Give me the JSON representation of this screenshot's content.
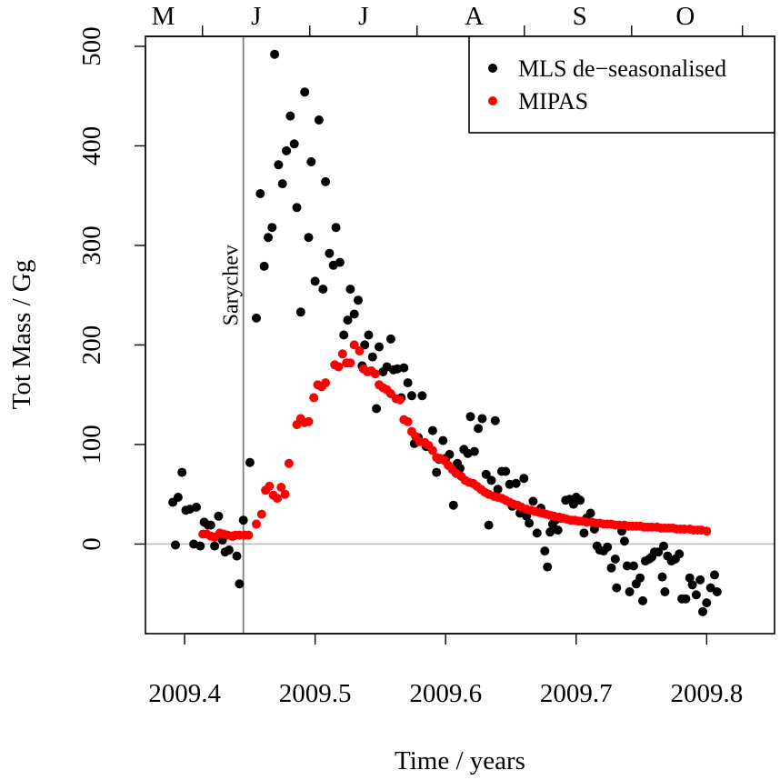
{
  "chart_data": {
    "type": "scatter",
    "xlabel": "Time / years",
    "ylabel": "Tot Mass / Gg",
    "xlim": [
      2009.37,
      2009.852
    ],
    "ylim": [
      -90,
      510
    ],
    "x_ticks": [
      2009.4,
      2009.5,
      2009.6,
      2009.7,
      2009.8
    ],
    "x_tick_labels": [
      "2009.4",
      "2009.5",
      "2009.6",
      "2009.7",
      "2009.8"
    ],
    "y_ticks": [
      0,
      100,
      200,
      300,
      400,
      500
    ],
    "y_tick_labels": [
      "0",
      "100",
      "200",
      "300",
      "400",
      "500"
    ],
    "month_boundaries": [
      2009.4137,
      2009.4959,
      2009.5781,
      2009.6603,
      2009.7425,
      2009.8274
    ],
    "month_labels": [
      {
        "label": "M",
        "x": 2009.3836
      },
      {
        "label": "J",
        "x": 2009.4548
      },
      {
        "label": "J",
        "x": 2009.537
      },
      {
        "label": "A",
        "x": 2009.6219
      },
      {
        "label": "S",
        "x": 2009.7027
      },
      {
        "label": "O",
        "x": 2009.7836
      }
    ],
    "event": {
      "label": "Sarychev",
      "x": 2009.445,
      "color": "#808080"
    },
    "zero_line": {
      "y": 0,
      "color": "#bebebe"
    },
    "legend_position": "top-right",
    "grid": false,
    "series": [
      {
        "name": "MLS de−seasonalised",
        "color": "#000000",
        "points": [
          [
            2009.391,
            42
          ],
          [
            2009.393,
            -1
          ],
          [
            2009.395,
            47
          ],
          [
            2009.398,
            72
          ],
          [
            2009.401,
            34
          ],
          [
            2009.404,
            35
          ],
          [
            2009.407,
            0
          ],
          [
            2009.409,
            37
          ],
          [
            2009.412,
            -2
          ],
          [
            2009.415,
            22
          ],
          [
            2009.418,
            19
          ],
          [
            2009.42,
            19
          ],
          [
            2009.423,
            -2
          ],
          [
            2009.426,
            28
          ],
          [
            2009.429,
            4
          ],
          [
            2009.431,
            -8
          ],
          [
            2009.434,
            -6
          ],
          [
            2009.437,
            8
          ],
          [
            2009.44,
            -12
          ],
          [
            2009.442,
            -40
          ],
          [
            2009.445,
            24
          ],
          [
            2009.45,
            82
          ],
          [
            2009.455,
            227
          ],
          [
            2009.458,
            352
          ],
          [
            2009.461,
            279
          ],
          [
            2009.464,
            308
          ],
          [
            2009.467,
            318
          ],
          [
            2009.469,
            492
          ],
          [
            2009.472,
            381
          ],
          [
            2009.475,
            362
          ],
          [
            2009.478,
            395
          ],
          [
            2009.481,
            430
          ],
          [
            2009.484,
            402
          ],
          [
            2009.486,
            338
          ],
          [
            2009.489,
            233
          ],
          [
            2009.492,
            454
          ],
          [
            2009.495,
            308
          ],
          [
            2009.497,
            384
          ],
          [
            2009.5,
            264
          ],
          [
            2009.503,
            426
          ],
          [
            2009.506,
            256
          ],
          [
            2009.508,
            364
          ],
          [
            2009.511,
            292
          ],
          [
            2009.514,
            280
          ],
          [
            2009.516,
            318
          ],
          [
            2009.519,
            283
          ],
          [
            2009.522,
            210
          ],
          [
            2009.525,
            225
          ],
          [
            2009.527,
            256
          ],
          [
            2009.53,
            231
          ],
          [
            2009.533,
            245
          ],
          [
            2009.536,
            179
          ],
          [
            2009.538,
            200
          ],
          [
            2009.541,
            210
          ],
          [
            2009.544,
            188
          ],
          [
            2009.547,
            136
          ],
          [
            2009.549,
            198
          ],
          [
            2009.552,
            173
          ],
          [
            2009.555,
            178
          ],
          [
            2009.558,
            206
          ],
          [
            2009.56,
            175
          ],
          [
            2009.563,
            176
          ],
          [
            2009.566,
            147
          ],
          [
            2009.568,
            177
          ],
          [
            2009.571,
            162
          ],
          [
            2009.574,
            149
          ],
          [
            2009.576,
            101
          ],
          [
            2009.579,
            107
          ],
          [
            2009.582,
            149
          ],
          [
            2009.585,
            98
          ],
          [
            2009.587,
            98
          ],
          [
            2009.59,
            114
          ],
          [
            2009.593,
            72
          ],
          [
            2009.595,
            85
          ],
          [
            2009.598,
            104
          ],
          [
            2009.6,
            86
          ],
          [
            2009.603,
            90
          ],
          [
            2009.606,
            39
          ],
          [
            2009.609,
            81
          ],
          [
            2009.611,
            76
          ],
          [
            2009.614,
            95
          ],
          [
            2009.617,
            91
          ],
          [
            2009.619,
            128
          ],
          [
            2009.622,
            93
          ],
          [
            2009.625,
            116
          ],
          [
            2009.628,
            126
          ],
          [
            2009.631,
            70
          ],
          [
            2009.633,
            19
          ],
          [
            2009.635,
            64
          ],
          [
            2009.638,
            124
          ],
          [
            2009.64,
            55
          ],
          [
            2009.643,
            73
          ],
          [
            2009.646,
            73
          ],
          [
            2009.649,
            60
          ],
          [
            2009.651,
            38
          ],
          [
            2009.654,
            61
          ],
          [
            2009.657,
            31
          ],
          [
            2009.66,
            66
          ],
          [
            2009.662,
            28
          ],
          [
            2009.664,
            21
          ],
          [
            2009.667,
            43
          ],
          [
            2009.67,
            11
          ],
          [
            2009.673,
            36
          ],
          [
            2009.676,
            -7
          ],
          [
            2009.678,
            -23
          ],
          [
            2009.68,
            12
          ],
          [
            2009.682,
            20
          ],
          [
            2009.684,
            24
          ],
          [
            2009.686,
            14
          ],
          [
            2009.688,
            26
          ],
          [
            2009.692,
            44
          ],
          [
            2009.695,
            45
          ],
          [
            2009.698,
            40
          ],
          [
            2009.7,
            47
          ],
          [
            2009.703,
            44
          ],
          [
            2009.706,
            11
          ],
          [
            2009.708,
            26
          ],
          [
            2009.711,
            31
          ],
          [
            2009.714,
            15
          ],
          [
            2009.716,
            -2
          ],
          [
            2009.718,
            -6
          ],
          [
            2009.721,
            -7
          ],
          [
            2009.724,
            -3
          ],
          [
            2009.727,
            -24
          ],
          [
            2009.73,
            -15
          ],
          [
            2009.731,
            -44
          ],
          [
            2009.735,
            13
          ],
          [
            2009.737,
            3
          ],
          [
            2009.739,
            -22
          ],
          [
            2009.741,
            -48
          ],
          [
            2009.744,
            -22
          ],
          [
            2009.746,
            -40
          ],
          [
            2009.749,
            -34
          ],
          [
            2009.751,
            -57
          ],
          [
            2009.753,
            -17
          ],
          [
            2009.756,
            -15
          ],
          [
            2009.758,
            -13
          ],
          [
            2009.76,
            -8
          ],
          [
            2009.763,
            -8
          ],
          [
            2009.766,
            -33
          ],
          [
            2009.767,
            -2
          ],
          [
            2009.768,
            -48
          ],
          [
            2009.77,
            -12
          ],
          [
            2009.773,
            -17
          ],
          [
            2009.776,
            -15
          ],
          [
            2009.779,
            -10
          ],
          [
            2009.781,
            -55
          ],
          [
            2009.784,
            -55
          ],
          [
            2009.787,
            -34
          ],
          [
            2009.789,
            -41
          ],
          [
            2009.792,
            -51
          ],
          [
            2009.795,
            -36
          ],
          [
            2009.797,
            -68
          ],
          [
            2009.8,
            -59
          ],
          [
            2009.803,
            -44
          ],
          [
            2009.806,
            -31
          ],
          [
            2009.808,
            -48
          ]
        ]
      },
      {
        "name": "MIPAS",
        "color": "#ff0000",
        "points": [
          [
            2009.414,
            10
          ],
          [
            2009.417,
            10
          ],
          [
            2009.42,
            8
          ],
          [
            2009.423,
            7
          ],
          [
            2009.427,
            11
          ],
          [
            2009.43,
            10
          ],
          [
            2009.433,
            9
          ],
          [
            2009.436,
            8
          ],
          [
            2009.439,
            9
          ],
          [
            2009.442,
            9
          ],
          [
            2009.446,
            9
          ],
          [
            2009.449,
            9
          ],
          [
            2009.455,
            20
          ],
          [
            2009.459,
            30
          ],
          [
            2009.462,
            54
          ],
          [
            2009.465,
            58
          ],
          [
            2009.468,
            49
          ],
          [
            2009.471,
            46
          ],
          [
            2009.474,
            57
          ],
          [
            2009.477,
            50
          ],
          [
            2009.48,
            81
          ],
          [
            2009.486,
            120
          ],
          [
            2009.489,
            126
          ],
          [
            2009.492,
            122
          ],
          [
            2009.495,
            123
          ],
          [
            2009.499,
            147
          ],
          [
            2009.502,
            160
          ],
          [
            2009.505,
            158
          ],
          [
            2009.508,
            162
          ],
          [
            2009.515,
            180
          ],
          [
            2009.518,
            178
          ],
          [
            2009.521,
            191
          ],
          [
            2009.524,
            182
          ],
          [
            2009.527,
            182
          ],
          [
            2009.53,
            200
          ],
          [
            2009.534,
            194
          ],
          [
            2009.537,
            176
          ],
          [
            2009.54,
            173
          ],
          [
            2009.543,
            174
          ],
          [
            2009.546,
            171
          ],
          [
            2009.549,
            160
          ],
          [
            2009.552,
            157
          ],
          [
            2009.555,
            155
          ],
          [
            2009.558,
            151
          ],
          [
            2009.562,
            146
          ],
          [
            2009.565,
            145
          ],
          [
            2009.568,
            125
          ],
          [
            2009.571,
            123
          ],
          [
            2009.574,
            113
          ],
          [
            2009.577,
            108
          ],
          [
            2009.58,
            103
          ],
          [
            2009.584,
            102
          ],
          [
            2009.587,
            99
          ],
          [
            2009.59,
            94
          ],
          [
            2009.593,
            87
          ],
          [
            2009.596,
            86
          ],
          [
            2009.599,
            84
          ],
          [
            2009.602,
            79
          ],
          [
            2009.605,
            75
          ],
          [
            2009.608,
            71
          ],
          [
            2009.612,
            68
          ],
          [
            2009.615,
            64
          ],
          [
            2009.618,
            62
          ],
          [
            2009.621,
            61
          ],
          [
            2009.624,
            58
          ],
          [
            2009.627,
            55
          ],
          [
            2009.63,
            52
          ],
          [
            2009.633,
            50
          ],
          [
            2009.637,
            48
          ],
          [
            2009.64,
            47
          ],
          [
            2009.643,
            46
          ],
          [
            2009.646,
            44
          ],
          [
            2009.649,
            42
          ],
          [
            2009.652,
            40
          ],
          [
            2009.655,
            39
          ],
          [
            2009.658,
            37
          ],
          [
            2009.662,
            35
          ],
          [
            2009.665,
            34
          ],
          [
            2009.668,
            33
          ],
          [
            2009.671,
            32
          ],
          [
            2009.674,
            31
          ],
          [
            2009.677,
            30
          ],
          [
            2009.68,
            29
          ],
          [
            2009.683,
            28
          ],
          [
            2009.687,
            27
          ],
          [
            2009.69,
            26
          ],
          [
            2009.693,
            25
          ],
          [
            2009.696,
            24
          ],
          [
            2009.699,
            24
          ],
          [
            2009.702,
            23
          ],
          [
            2009.705,
            23
          ],
          [
            2009.708,
            22
          ],
          [
            2009.712,
            22
          ],
          [
            2009.715,
            21
          ],
          [
            2009.718,
            21
          ],
          [
            2009.721,
            20
          ],
          [
            2009.724,
            20
          ],
          [
            2009.727,
            20
          ],
          [
            2009.73,
            19
          ],
          [
            2009.733,
            19
          ],
          [
            2009.737,
            19
          ],
          [
            2009.74,
            18
          ],
          [
            2009.743,
            18
          ],
          [
            2009.746,
            18
          ],
          [
            2009.749,
            18
          ],
          [
            2009.752,
            17
          ],
          [
            2009.755,
            17
          ],
          [
            2009.758,
            17
          ],
          [
            2009.762,
            17
          ],
          [
            2009.765,
            16
          ],
          [
            2009.768,
            16
          ],
          [
            2009.771,
            16
          ],
          [
            2009.774,
            16
          ],
          [
            2009.777,
            15
          ],
          [
            2009.78,
            15
          ],
          [
            2009.783,
            15
          ],
          [
            2009.787,
            15
          ],
          [
            2009.79,
            14
          ],
          [
            2009.793,
            14
          ],
          [
            2009.796,
            14
          ],
          [
            2009.8,
            13
          ]
        ]
      }
    ]
  }
}
